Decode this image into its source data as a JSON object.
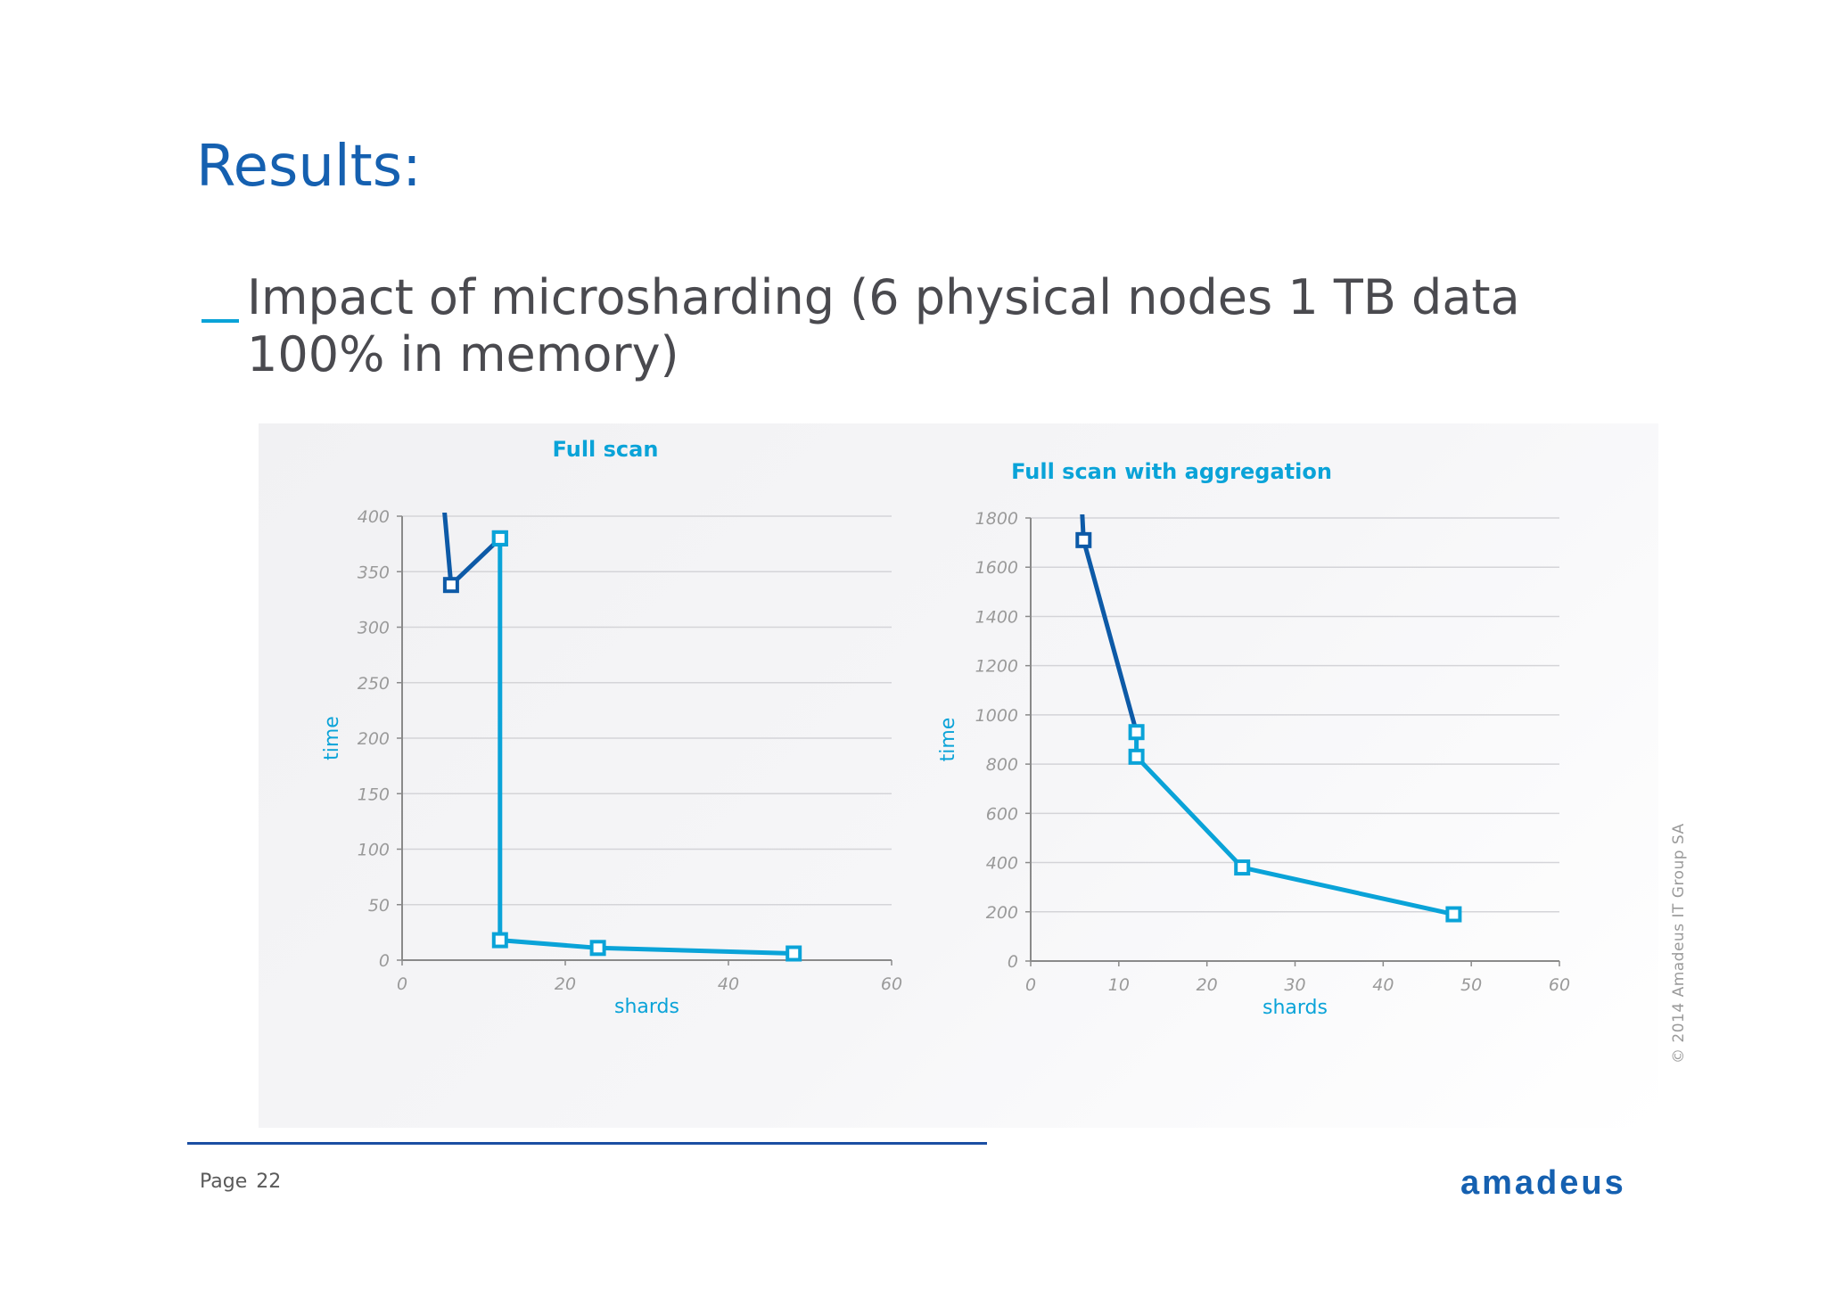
{
  "slide": {
    "title": "Results:",
    "bullet_dash": "_",
    "subtitle": "Impact of microsharding (6 physical nodes 1 TB data 100% in memory)",
    "page_word": "Page",
    "page_number": "22",
    "copyright": "© 2014 Amadeus IT Group SA",
    "logo": "amadeus"
  },
  "colors": {
    "title": "#1560b0",
    "dark_series": "#0d5aa7",
    "light_series": "#0aa3d8",
    "axis_label": "#0aa3d8",
    "tick": "#9a9a9a"
  },
  "chart_data": [
    {
      "type": "line",
      "title": "Full scan",
      "xlabel": "shards",
      "ylabel": "time",
      "xlim": [
        0,
        60
      ],
      "ylim": [
        0,
        400
      ],
      "xticks": [
        0,
        20,
        40,
        60
      ],
      "yticks": [
        0,
        50,
        100,
        150,
        200,
        250,
        300,
        350,
        400
      ],
      "grid": true,
      "series": [
        {
          "color": "#0d5aa7",
          "points": [
            [
              5,
              420
            ],
            [
              6,
              338
            ],
            [
              12,
              380
            ]
          ],
          "markers": [
            [
              6,
              338
            ],
            [
              12,
              380
            ]
          ]
        },
        {
          "color": "#0aa3d8",
          "points": [
            [
              12,
              380
            ],
            [
              12,
              18
            ],
            [
              24,
              11
            ],
            [
              48,
              6
            ]
          ],
          "markers": [
            [
              12,
              380
            ],
            [
              12,
              18
            ],
            [
              24,
              11
            ],
            [
              48,
              6
            ]
          ]
        }
      ]
    },
    {
      "type": "line",
      "title": "Full scan with aggregation",
      "xlabel": "shards",
      "ylabel": "time",
      "xlim": [
        0,
        60
      ],
      "ylim": [
        0,
        1800
      ],
      "xticks": [
        0,
        10,
        20,
        30,
        40,
        50,
        60
      ],
      "yticks": [
        0,
        200,
        400,
        600,
        800,
        1000,
        1200,
        1400,
        1600,
        1800
      ],
      "grid": true,
      "series": [
        {
          "color": "#0d5aa7",
          "points": [
            [
              5.8,
              1850
            ],
            [
              6,
              1710
            ],
            [
              12,
              930
            ]
          ],
          "markers": [
            [
              6,
              1710
            ]
          ]
        },
        {
          "color": "#0aa3d8",
          "points": [
            [
              12,
              930
            ],
            [
              12,
              830
            ],
            [
              24,
              380
            ],
            [
              48,
              190
            ]
          ],
          "markers": [
            [
              12,
              930
            ],
            [
              12,
              830
            ],
            [
              24,
              380
            ],
            [
              48,
              190
            ]
          ]
        }
      ]
    }
  ]
}
